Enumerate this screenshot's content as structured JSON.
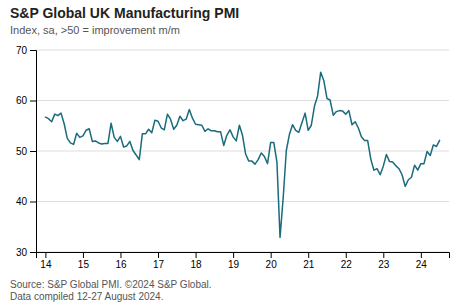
{
  "chart_data": {
    "type": "line",
    "title": "S&P Global UK Manufacturing PMI",
    "subtitle": "Index, sa, >50 = improvement m/m",
    "annotations": [
      "Source: S&P Global PMI. ©2024 S&P Global.",
      "Data compiled 12-27 August 2024."
    ],
    "color": "#1a6b7c",
    "grid": "y",
    "xlim": [
      2013.75,
      2024.75
    ],
    "xticks": [
      {
        "value": 2014,
        "label": "14"
      },
      {
        "value": 2015,
        "label": "15"
      },
      {
        "value": 2016,
        "label": "16"
      },
      {
        "value": 2017,
        "label": "17"
      },
      {
        "value": 2018,
        "label": "18"
      },
      {
        "value": 2019,
        "label": "19"
      },
      {
        "value": 2020,
        "label": "20"
      },
      {
        "value": 2021,
        "label": "21"
      },
      {
        "value": 2022,
        "label": "22"
      },
      {
        "value": 2023,
        "label": "23"
      },
      {
        "value": 2024,
        "label": "24"
      }
    ],
    "ylim": [
      30,
      70
    ],
    "yticks": [
      30,
      40,
      50,
      60,
      70
    ],
    "x": [
      2014.0,
      2014.083,
      2014.167,
      2014.25,
      2014.333,
      2014.417,
      2014.5,
      2014.583,
      2014.667,
      2014.75,
      2014.833,
      2014.917,
      2015.0,
      2015.083,
      2015.167,
      2015.25,
      2015.333,
      2015.417,
      2015.5,
      2015.583,
      2015.667,
      2015.75,
      2015.833,
      2015.917,
      2016.0,
      2016.083,
      2016.167,
      2016.25,
      2016.333,
      2016.417,
      2016.5,
      2016.583,
      2016.667,
      2016.75,
      2016.833,
      2016.917,
      2017.0,
      2017.083,
      2017.167,
      2017.25,
      2017.333,
      2017.417,
      2017.5,
      2017.583,
      2017.667,
      2017.75,
      2017.833,
      2017.917,
      2018.0,
      2018.083,
      2018.167,
      2018.25,
      2018.333,
      2018.417,
      2018.5,
      2018.583,
      2018.667,
      2018.75,
      2018.833,
      2018.917,
      2019.0,
      2019.083,
      2019.167,
      2019.25,
      2019.333,
      2019.417,
      2019.5,
      2019.583,
      2019.667,
      2019.75,
      2019.833,
      2019.917,
      2020.0,
      2020.083,
      2020.167,
      2020.25,
      2020.333,
      2020.417,
      2020.5,
      2020.583,
      2020.667,
      2020.75,
      2020.833,
      2020.917,
      2021.0,
      2021.083,
      2021.167,
      2021.25,
      2021.333,
      2021.417,
      2021.5,
      2021.583,
      2021.667,
      2021.75,
      2021.833,
      2021.917,
      2022.0,
      2022.083,
      2022.167,
      2022.25,
      2022.333,
      2022.417,
      2022.5,
      2022.583,
      2022.667,
      2022.75,
      2022.833,
      2022.917,
      2023.0,
      2023.083,
      2023.167,
      2023.25,
      2023.333,
      2023.417,
      2023.5,
      2023.583,
      2023.667,
      2023.75,
      2023.833,
      2023.917,
      2024.0,
      2024.083,
      2024.167,
      2024.25,
      2024.333,
      2024.417,
      2024.5
    ],
    "values": [
      56.7,
      56.4,
      55.8,
      57.3,
      57.0,
      57.5,
      55.4,
      52.5,
      51.6,
      51.3,
      53.5,
      52.7,
      53.0,
      54.1,
      54.4,
      51.9,
      52.0,
      51.6,
      51.4,
      51.5,
      51.5,
      55.5,
      52.7,
      51.9,
      52.9,
      50.8,
      51.0,
      51.9,
      50.1,
      49.2,
      48.3,
      53.4,
      53.4,
      54.3,
      53.6,
      56.1,
      55.9,
      54.6,
      54.2,
      57.3,
      56.3,
      54.3,
      55.1,
      56.9,
      56.0,
      56.3,
      58.2,
      56.5,
      55.3,
      55.2,
      55.1,
      53.9,
      54.4,
      54.0,
      54.0,
      53.8,
      53.8,
      51.1,
      53.1,
      54.2,
      52.8,
      52.0,
      55.1,
      53.1,
      49.4,
      48.0,
      48.0,
      47.4,
      48.3,
      49.6,
      48.9,
      47.5,
      51.7,
      51.7,
      47.8,
      32.9,
      40.7,
      50.1,
      53.3,
      55.2,
      54.1,
      53.7,
      55.6,
      57.5,
      54.1,
      55.1,
      58.9,
      60.9,
      65.6,
      63.9,
      60.4,
      60.1,
      57.1,
      57.8,
      58.0,
      57.9,
      57.3,
      58.0,
      55.2,
      55.8,
      54.6,
      52.8,
      52.1,
      52.1,
      48.4,
      46.2,
      46.5,
      45.3,
      47.0,
      49.3,
      47.9,
      47.8,
      47.1,
      46.5,
      45.3,
      43.0,
      44.3,
      44.8,
      47.2,
      46.2,
      47.5,
      47.5,
      49.9,
      49.1,
      51.2,
      50.9,
      52.1
    ]
  }
}
